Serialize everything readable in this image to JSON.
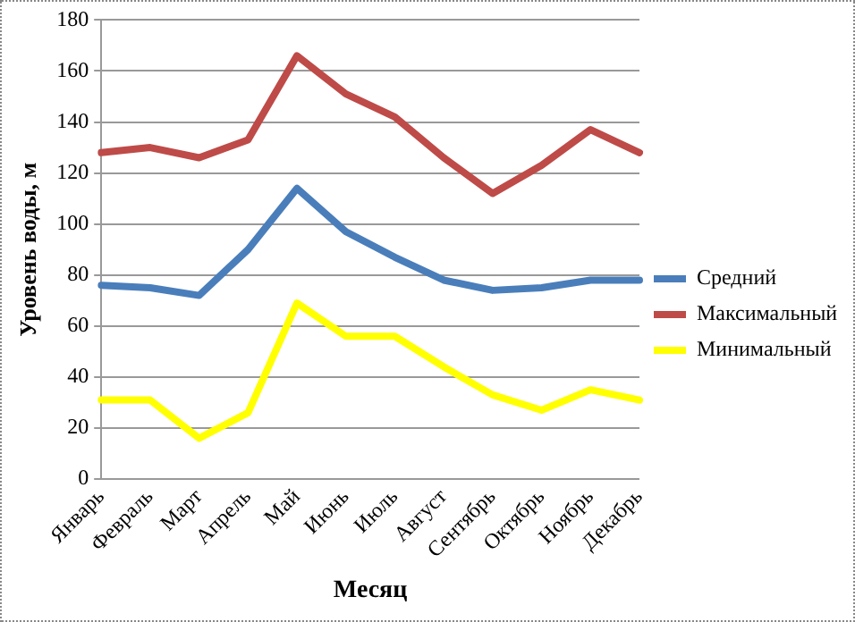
{
  "chart_data": {
    "type": "line",
    "xlabel": "Месяц",
    "ylabel": "Уровень воды, м",
    "categories": [
      "Январь",
      "Февраль",
      "Март",
      "Апрель",
      "Май",
      "Июнь",
      "Июль",
      "Август",
      "Сентябрь",
      "Октябрь",
      "Ноябрь",
      "Декабрь"
    ],
    "series": [
      {
        "name": "Средний",
        "color": "#4a7ebb",
        "values": [
          76,
          75,
          72,
          90,
          114,
          97,
          87,
          78,
          74,
          75,
          78,
          78
        ]
      },
      {
        "name": "Максимальный",
        "color": "#be4b48",
        "values": [
          128,
          130,
          126,
          133,
          166,
          151,
          142,
          126,
          112,
          123,
          137,
          128
        ]
      },
      {
        "name": "Минимальный",
        "color": "#ffff00",
        "values": [
          31,
          31,
          16,
          26,
          69,
          56,
          56,
          44,
          33,
          27,
          35,
          31
        ]
      }
    ],
    "ylim": [
      0,
      180
    ],
    "yticks": [
      0,
      20,
      40,
      60,
      80,
      100,
      120,
      140,
      160,
      180
    ],
    "grid": "y",
    "legend": "right",
    "marker": "none",
    "line_style": "solid"
  }
}
